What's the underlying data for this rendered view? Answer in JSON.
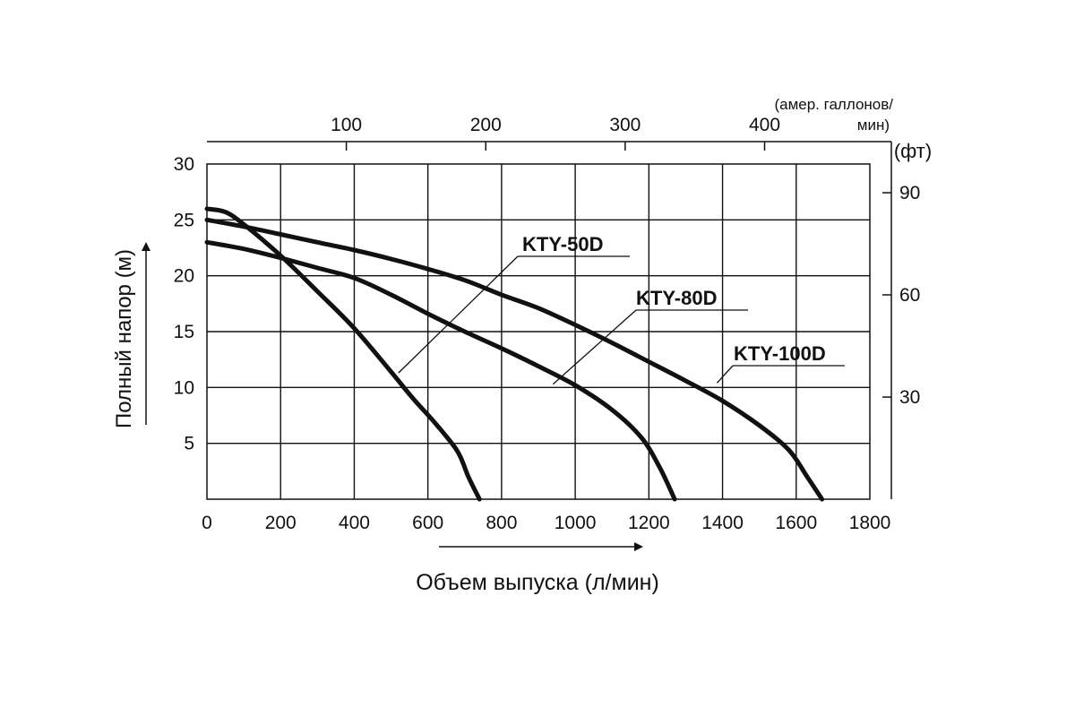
{
  "chart_data": {
    "type": "line",
    "xlabel": "Объем выпуска (л/мин)",
    "ylabel": "Полный напор (м)",
    "xlim": [
      0,
      1800
    ],
    "ylim": [
      0,
      30
    ],
    "x_ticks": [
      "0",
      "200",
      "400",
      "600",
      "800",
      "1000",
      "1200",
      "1400",
      "1600",
      "1800"
    ],
    "y_ticks": [
      "5",
      "10",
      "15",
      "20",
      "25",
      "30"
    ],
    "grid": true,
    "secondary_x_axis": {
      "unit": [
        "(амер. галлонов/",
        "мин)"
      ],
      "ticks": [
        "100",
        "200",
        "300",
        "400"
      ],
      "values_lpm": [
        378.5,
        757.1,
        1135.6,
        1514.2
      ]
    },
    "secondary_y_axis": {
      "unit": "(фт)",
      "ticks": [
        "90",
        "60",
        "30"
      ],
      "values_m": [
        27.43,
        18.29,
        9.14
      ]
    },
    "series": [
      {
        "name": "KTY-50D",
        "x": [
          0,
          50,
          100,
          200,
          300,
          400,
          500,
          560,
          620,
          680,
          710,
          740
        ],
        "y": [
          26,
          25.7,
          24.6,
          21.8,
          18.6,
          15.3,
          11.4,
          9.0,
          6.8,
          4.3,
          2.0,
          0
        ]
      },
      {
        "name": "KTY-80D",
        "x": [
          0,
          100,
          200,
          300,
          400,
          500,
          600,
          700,
          800,
          900,
          1000,
          1100,
          1180,
          1230,
          1270
        ],
        "y": [
          23,
          22.4,
          21.6,
          20.7,
          19.8,
          18.3,
          16.6,
          15.0,
          13.5,
          11.9,
          10.2,
          8.0,
          5.5,
          2.8,
          0
        ]
      },
      {
        "name": "KTY-100D",
        "x": [
          0,
          100,
          200,
          300,
          400,
          500,
          600,
          700,
          800,
          900,
          1000,
          1100,
          1200,
          1300,
          1400,
          1500,
          1580,
          1630,
          1670
        ],
        "y": [
          25,
          24.4,
          23.7,
          23.0,
          22.3,
          21.5,
          20.6,
          19.6,
          18.3,
          17.1,
          15.6,
          14.0,
          12.3,
          10.6,
          8.8,
          6.6,
          4.4,
          2.0,
          0
        ]
      }
    ],
    "callouts": [
      {
        "series": "KTY-50D",
        "label": "KTY-50D",
        "x": 520,
        "y": 11.3
      },
      {
        "series": "KTY-80D",
        "label": "KTY-80D",
        "x": 940,
        "y": 10.3
      },
      {
        "series": "KTY-100D",
        "label": "KTY-100D",
        "x": 1385,
        "y": 10.4
      }
    ]
  }
}
